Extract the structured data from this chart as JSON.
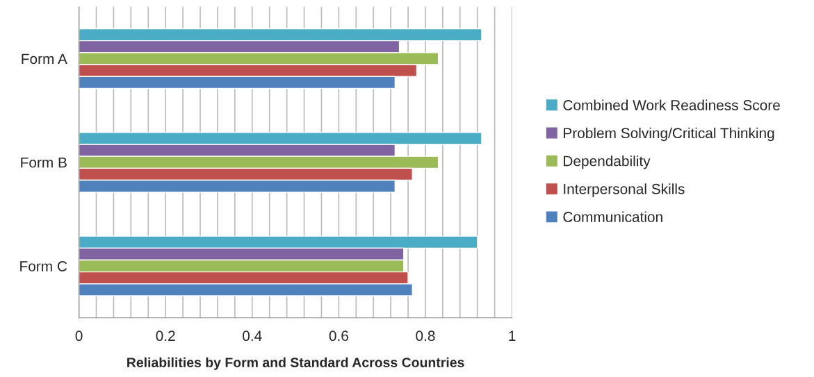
{
  "chart_data": {
    "type": "bar",
    "orientation": "horizontal",
    "xlabel": "Reliabilities by Form and Standard Across Countries",
    "categories": [
      "Form A",
      "Form B",
      "Form C"
    ],
    "series": [
      {
        "name": "Combined Work Readiness Score",
        "color": "#4bacc6",
        "values": [
          0.93,
          0.93,
          0.92
        ]
      },
      {
        "name": "Problem Solving/Critical Thinking",
        "color": "#8064a2",
        "values": [
          0.74,
          0.73,
          0.75
        ]
      },
      {
        "name": "Dependability",
        "color": "#9bbb59",
        "values": [
          0.83,
          0.83,
          0.75
        ]
      },
      {
        "name": "Interpersonal Skills",
        "color": "#c0504d",
        "values": [
          0.78,
          0.77,
          0.76
        ]
      },
      {
        "name": "Communication",
        "color": "#4f81bd",
        "values": [
          0.73,
          0.73,
          0.77
        ]
      }
    ],
    "xlim": [
      0,
      1
    ],
    "xticks": [
      0,
      {
        "value": 0.04,
        "label": null
      },
      {
        "value": 0.08,
        "label": null
      },
      {
        "value": 0.12,
        "label": null
      },
      {
        "value": 0.16,
        "label": null
      },
      0.2,
      {
        "value": 0.24,
        "label": null
      },
      {
        "value": 0.28,
        "label": null
      },
      {
        "value": 0.32,
        "label": null
      },
      {
        "value": 0.36,
        "label": null
      },
      0.4,
      {
        "value": 0.44,
        "label": null
      },
      {
        "value": 0.48,
        "label": null
      },
      {
        "value": 0.52,
        "label": null
      },
      {
        "value": 0.56,
        "label": null
      },
      0.6,
      {
        "value": 0.64,
        "label": null
      },
      {
        "value": 0.68,
        "label": null
      },
      {
        "value": 0.72,
        "label": null
      },
      {
        "value": 0.76,
        "label": null
      },
      0.8,
      {
        "value": 0.84,
        "label": null
      },
      {
        "value": 0.88,
        "label": null
      },
      {
        "value": 0.92,
        "label": null
      },
      {
        "value": 0.96,
        "label": null
      },
      1
    ],
    "grid": "x",
    "legend": "right"
  }
}
